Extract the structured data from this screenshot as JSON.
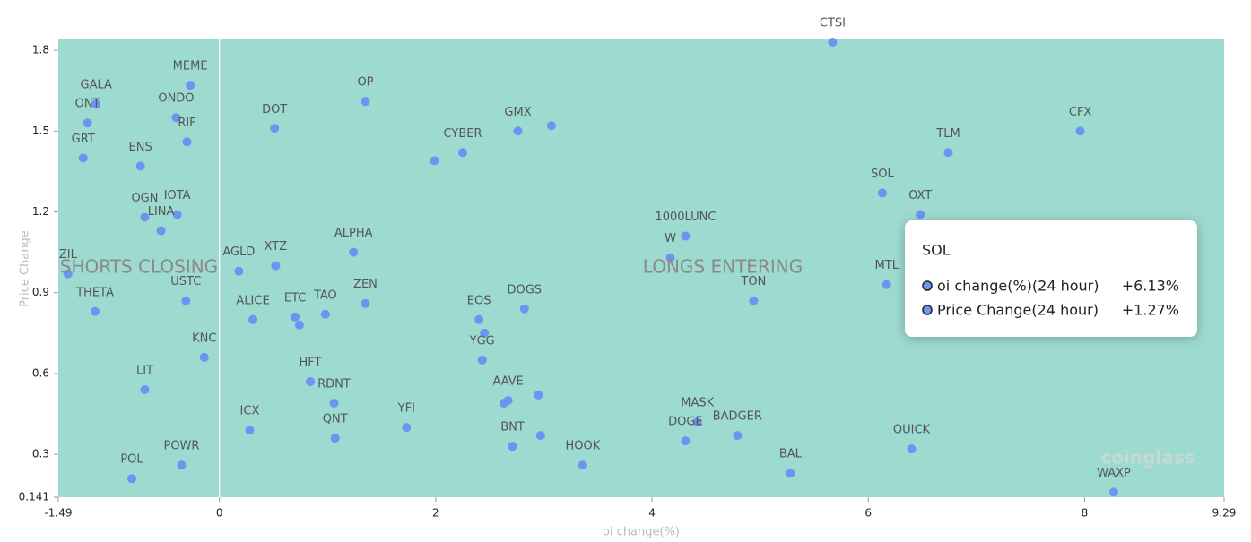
{
  "chart_data": {
    "type": "scatter",
    "x_label": "oi change(%)",
    "y_label": "Price Change",
    "color": "#6e93f2",
    "background": "#9ddad0",
    "xlim": [
      -1.49,
      9.29
    ],
    "ylim": [
      0.141,
      1.84
    ],
    "xticks": [
      -1.49,
      0,
      2,
      4,
      6,
      8,
      9.29
    ],
    "yticks": [
      0.141,
      0.3,
      0.6,
      0.9,
      1.2,
      1.5,
      1.8
    ],
    "labels": [
      "ZIL",
      "GALA",
      "ONT",
      "GRT",
      "MEME",
      "ONDO",
      "RIF",
      "ENS",
      "OGN",
      "IOTA",
      "LINA",
      "THETA",
      "USTC",
      "KNC",
      "LIT",
      "POWR",
      "POL",
      "DOT",
      "OP",
      "AGLD",
      "XTZ",
      "ALPHA",
      "ALICE",
      "ETC",
      null,
      "TAO",
      "ZEN",
      "HFT",
      "RDNT",
      "QNT",
      "ICX",
      "YFI",
      "CYBER",
      null,
      "GMX",
      null,
      "DOGS",
      "EOS",
      null,
      "YGG",
      "AAVE",
      null,
      null,
      "BNT",
      null,
      "HOOK",
      "1000LUNC",
      "W",
      "TON",
      "MASK",
      "DOGE",
      "BADGER",
      "BAL",
      "CTSI",
      "SOL",
      "OXT",
      "MTL",
      "TLM",
      "CFX",
      "QUICK",
      "WAXP"
    ],
    "x": [
      -1.4,
      -1.14,
      -1.22,
      -1.26,
      -0.27,
      -0.4,
      -0.3,
      -0.73,
      -0.69,
      -0.39,
      -0.54,
      -1.15,
      -0.31,
      -0.14,
      -0.69,
      -0.35,
      -0.81,
      0.51,
      1.35,
      0.18,
      0.52,
      1.24,
      0.31,
      0.7,
      0.74,
      0.98,
      1.35,
      0.84,
      1.06,
      1.07,
      0.28,
      1.73,
      2.25,
      1.99,
      2.76,
      3.07,
      2.82,
      2.4,
      2.45,
      2.43,
      2.67,
      2.63,
      2.95,
      2.71,
      2.97,
      3.36,
      4.31,
      4.17,
      4.94,
      4.42,
      4.31,
      4.79,
      5.28,
      5.67,
      6.13,
      6.48,
      6.17,
      6.74,
      7.96,
      6.4,
      8.27
    ],
    "values": [
      0.97,
      1.6,
      1.53,
      1.4,
      1.67,
      1.55,
      1.46,
      1.37,
      1.18,
      1.19,
      1.13,
      0.83,
      0.87,
      0.66,
      0.54,
      0.26,
      0.21,
      1.51,
      1.61,
      0.98,
      1.0,
      1.05,
      0.8,
      0.81,
      0.78,
      0.82,
      0.86,
      0.57,
      0.49,
      0.36,
      0.39,
      0.4,
      1.42,
      1.39,
      1.5,
      1.52,
      0.84,
      0.8,
      0.75,
      0.65,
      0.5,
      0.49,
      0.52,
      0.33,
      0.37,
      0.26,
      1.11,
      1.03,
      0.87,
      0.42,
      0.35,
      0.37,
      0.23,
      1.83,
      1.27,
      1.19,
      0.93,
      1.42,
      1.5,
      0.32,
      0.16
    ],
    "quadrant_labels": [
      "SHORTS CLOSING",
      "LONGS ENTERING"
    ],
    "tooltip": {
      "title": "SOL",
      "rows": [
        {
          "name": "oi change(%)(24 hour)",
          "value": "+6.13%"
        },
        {
          "name": "Price Change(24 hour)",
          "value": "+1.27%"
        }
      ]
    },
    "watermark": "coinglass"
  }
}
